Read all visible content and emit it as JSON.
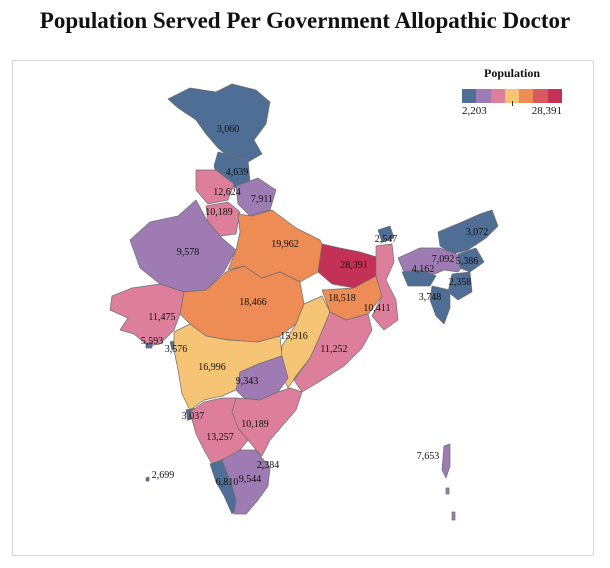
{
  "title": "Population Served Per Government Allopathic Doctor",
  "legend": {
    "title": "Population",
    "min_label": "2,203",
    "max_label": "28,391",
    "colors": [
      "#4e6e95",
      "#9e7bb3",
      "#dd7f9b",
      "#f5c575",
      "#ee8c55",
      "#d9585e",
      "#c43156"
    ]
  },
  "regions": [
    {
      "name": "Jammu & Kashmir",
      "label": "3,060"
    },
    {
      "name": "Himachal Pradesh",
      "label": "4,639"
    },
    {
      "name": "Punjab",
      "label": "12,624"
    },
    {
      "name": "Uttarakhand",
      "label": "7,911"
    },
    {
      "name": "Haryana",
      "label": "10,189"
    },
    {
      "name": "Rajasthan",
      "label": "9,578"
    },
    {
      "name": "Uttar Pradesh",
      "label": "19,962"
    },
    {
      "name": "Bihar",
      "label": "28,391"
    },
    {
      "name": "Sikkim",
      "label": "2,547"
    },
    {
      "name": "Arunachal Pradesh",
      "label": "3,072"
    },
    {
      "name": "Assam",
      "label": "7,092"
    },
    {
      "name": "Nagaland",
      "label": "5,386"
    },
    {
      "name": "Meghalaya",
      "label": "4,162"
    },
    {
      "name": "Manipur",
      "label": "2,358"
    },
    {
      "name": "Mizoram",
      "label": "3,748"
    },
    {
      "name": "Gujarat",
      "label": "11,475"
    },
    {
      "name": "Madhya Pradesh",
      "label": "18,466"
    },
    {
      "name": "Jharkhand",
      "label": "18,518"
    },
    {
      "name": "West Bengal",
      "label": "10,411"
    },
    {
      "name": "Daman & Diu",
      "label": "5,593"
    },
    {
      "name": "Dadra & Nagar Haveli",
      "label": "3,576"
    },
    {
      "name": "Chhattisgarh",
      "label": "15,916"
    },
    {
      "name": "Odisha",
      "label": "11,252"
    },
    {
      "name": "Maharashtra",
      "label": "16,996"
    },
    {
      "name": "Telangana",
      "label": "9,343"
    },
    {
      "name": "Goa",
      "label": "3,037"
    },
    {
      "name": "Andhra Pradesh",
      "label": "10,189"
    },
    {
      "name": "Karnataka",
      "label": "13,257"
    },
    {
      "name": "Lakshadweep",
      "label": "2,699"
    },
    {
      "name": "Puducherry",
      "label": "2,384"
    },
    {
      "name": "Kerala",
      "label": "6,810"
    },
    {
      "name": "Tamil Nadu",
      "label": "9,544"
    },
    {
      "name": "Andaman & Nicobar Islands",
      "label": "7,653"
    }
  ]
}
